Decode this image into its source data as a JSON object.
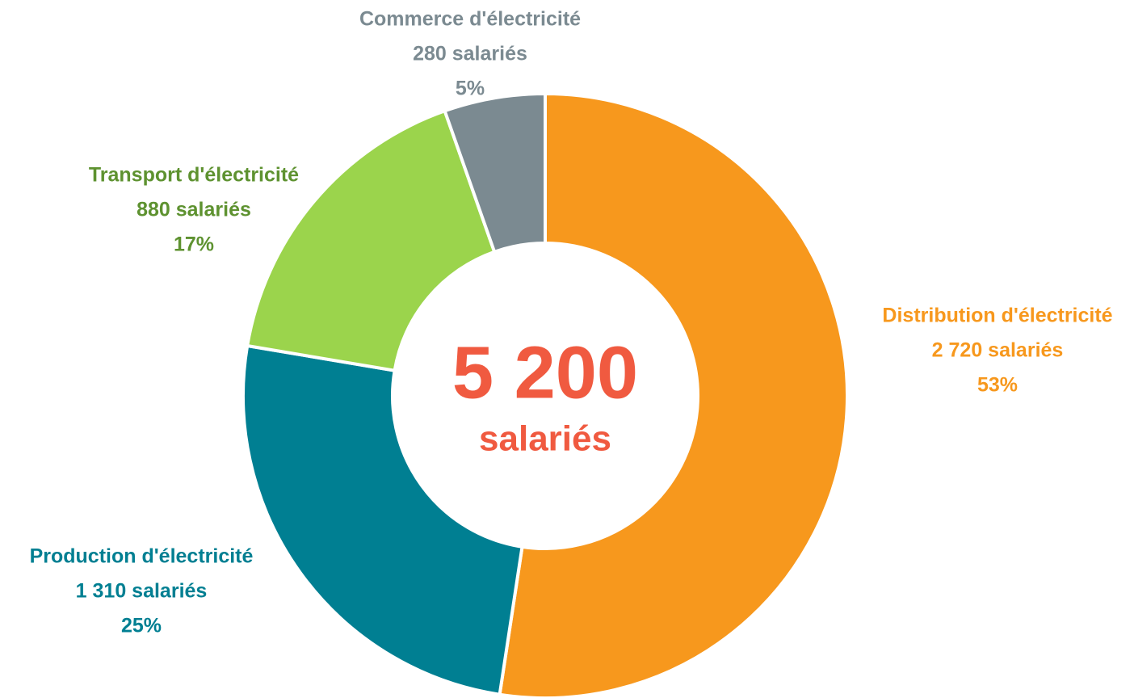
{
  "chart_data": {
    "type": "donut",
    "categories": [
      "Distribution d'électricité",
      "Production d'électricité",
      "Transport d'électricité",
      "Commerce d'électricité"
    ],
    "values": [
      2720,
      1310,
      880,
      280
    ],
    "value_labels": [
      "2 720 salariés",
      "1 310 salariés",
      "880 salariés",
      "280 salariés"
    ],
    "percents": [
      53,
      25,
      17,
      5
    ],
    "percent_labels": [
      "53%",
      "25%",
      "17%",
      "5%"
    ],
    "colors": [
      "#f7981d",
      "#007f92",
      "#9bd44c",
      "#7b8a91"
    ],
    "label_colors": [
      "#f7981d",
      "#007f92",
      "#5e9230",
      "#7b8a91"
    ],
    "total": {
      "value": 5200,
      "label": "5 200"
    },
    "total_unit": "salariés",
    "total_color": "#f05a40"
  }
}
